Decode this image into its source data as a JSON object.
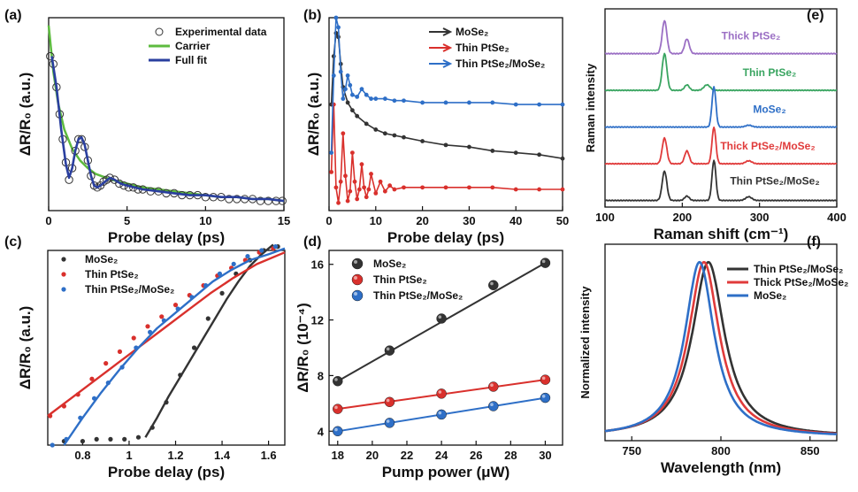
{
  "chart_data": [
    {
      "id": "a",
      "type": "scatter",
      "panel_label": "(a)",
      "xlabel": "Probe delay (ps)",
      "ylabel": "ΔR/R₀ (a.u.)",
      "xlim": [
        0,
        15
      ],
      "ylim": [
        0,
        1
      ],
      "xticks": [
        0,
        5,
        10,
        15
      ],
      "yticks": [],
      "legend_position": "top-right",
      "series": [
        {
          "name": "Experimental data",
          "kind": "scatter-open",
          "color": "#333333",
          "x": [
            0.1,
            0.3,
            0.5,
            0.7,
            0.9,
            1.1,
            1.3,
            1.5,
            1.7,
            1.9,
            2.1,
            2.3,
            2.5,
            2.7,
            2.9,
            3.1,
            3.3,
            3.5,
            3.7,
            3.9,
            4.2,
            4.5,
            4.8,
            5.1,
            5.4,
            5.7,
            6.0,
            6.5,
            7.0,
            7.5,
            8.0,
            8.5,
            9.0,
            9.5,
            10.0,
            10.5,
            11.0,
            11.5,
            12.0,
            12.5,
            13.0,
            13.5,
            14.0,
            14.5,
            14.9
          ],
          "y": [
            0.8,
            0.76,
            0.64,
            0.5,
            0.37,
            0.25,
            0.16,
            0.22,
            0.31,
            0.37,
            0.37,
            0.33,
            0.26,
            0.18,
            0.13,
            0.12,
            0.13,
            0.15,
            0.16,
            0.17,
            0.16,
            0.14,
            0.13,
            0.12,
            0.12,
            0.11,
            0.11,
            0.1,
            0.1,
            0.09,
            0.09,
            0.08,
            0.08,
            0.08,
            0.07,
            0.07,
            0.07,
            0.06,
            0.06,
            0.06,
            0.06,
            0.05,
            0.05,
            0.05,
            0.05
          ]
        },
        {
          "name": "Carrier",
          "kind": "line",
          "color": "#5dbb3f",
          "x": [
            0,
            0.3,
            0.6,
            1.0,
            1.5,
            2.0,
            2.5,
            3.0,
            4.0,
            5.0,
            6.0,
            7.0,
            8.0,
            9.0,
            10.0,
            11.0,
            12.0,
            13.0,
            14.0,
            15.0
          ],
          "y": [
            0.96,
            0.72,
            0.56,
            0.42,
            0.32,
            0.26,
            0.22,
            0.19,
            0.16,
            0.14,
            0.12,
            0.11,
            0.1,
            0.09,
            0.08,
            0.07,
            0.07,
            0.06,
            0.06,
            0.05
          ]
        },
        {
          "name": "Full fit",
          "kind": "line",
          "color": "#2a3f9f",
          "x": [
            0.2,
            0.5,
            0.8,
            1.1,
            1.3,
            1.5,
            1.7,
            1.9,
            2.1,
            2.3,
            2.5,
            2.7,
            2.9,
            3.1,
            3.3,
            3.6,
            3.9,
            4.2,
            4.6,
            5.0,
            6.0,
            7.0,
            8.0,
            9.0,
            10.0,
            11.0,
            12.0,
            13.0,
            14.0,
            15.0
          ],
          "y": [
            0.8,
            0.64,
            0.42,
            0.24,
            0.17,
            0.22,
            0.31,
            0.37,
            0.38,
            0.34,
            0.26,
            0.18,
            0.13,
            0.12,
            0.13,
            0.15,
            0.17,
            0.16,
            0.14,
            0.13,
            0.11,
            0.1,
            0.09,
            0.08,
            0.08,
            0.07,
            0.07,
            0.06,
            0.06,
            0.05
          ]
        }
      ]
    },
    {
      "id": "b",
      "type": "line",
      "panel_label": "(b)",
      "xlabel": "Probe delay (ps)",
      "ylabel": "ΔR/R₀ (a.u.)",
      "xlim": [
        0,
        50
      ],
      "ylim": [
        0,
        1
      ],
      "xticks": [
        0,
        10,
        20,
        30,
        40,
        50
      ],
      "yticks": [],
      "legend_position": "top-right",
      "series": [
        {
          "name": "MoSe₂",
          "color": "#333333",
          "x": [
            0.5,
            1.0,
            1.5,
            2.0,
            2.5,
            3.0,
            4.0,
            5.0,
            6.0,
            8.0,
            10.0,
            12.0,
            14.0,
            16.0,
            20.0,
            25.0,
            30.0,
            35.0,
            40.0,
            45.0,
            50.0
          ],
          "y": [
            0.55,
            0.8,
            0.92,
            0.9,
            0.76,
            0.64,
            0.56,
            0.52,
            0.49,
            0.45,
            0.42,
            0.4,
            0.39,
            0.38,
            0.36,
            0.34,
            0.33,
            0.31,
            0.3,
            0.29,
            0.27
          ]
        },
        {
          "name": "Thin PtSe₂",
          "color": "#d9302c",
          "x": [
            0.5,
            1.0,
            1.5,
            2.0,
            2.5,
            3.0,
            3.5,
            4.0,
            4.5,
            5.0,
            5.5,
            6.0,
            6.5,
            7.0,
            7.5,
            8.0,
            8.5,
            9.0,
            10.0,
            11.0,
            12.0,
            13.0,
            14.0,
            16.0,
            20.0,
            25.0,
            30.0,
            35.0,
            40.0,
            45.0,
            50.0
          ],
          "y": [
            0.2,
            0.55,
            0.12,
            0.04,
            0.15,
            0.4,
            0.18,
            0.05,
            0.1,
            0.3,
            0.15,
            0.06,
            0.11,
            0.24,
            0.12,
            0.07,
            0.11,
            0.19,
            0.09,
            0.15,
            0.1,
            0.13,
            0.11,
            0.12,
            0.12,
            0.12,
            0.12,
            0.12,
            0.11,
            0.11,
            0.11
          ]
        },
        {
          "name": "Thin PtSe₂/MoSe₂",
          "color": "#2e6fc7",
          "x": [
            0.5,
            1.0,
            1.5,
            2.0,
            2.5,
            3.0,
            3.5,
            4.0,
            4.5,
            5.0,
            6.0,
            7.0,
            8.0,
            9.0,
            10.0,
            12.0,
            14.0,
            16.0,
            20.0,
            25.0,
            30.0,
            35.0,
            40.0,
            45.0,
            50.0
          ],
          "y": [
            0.3,
            0.7,
            1.0,
            0.95,
            0.72,
            0.58,
            0.63,
            0.7,
            0.65,
            0.6,
            0.59,
            0.63,
            0.6,
            0.58,
            0.58,
            0.58,
            0.57,
            0.57,
            0.56,
            0.56,
            0.56,
            0.56,
            0.55,
            0.55,
            0.55
          ]
        }
      ]
    },
    {
      "id": "c",
      "type": "scatter",
      "panel_label": "(c)",
      "xlabel": "Probe delay (ps)",
      "ylabel": "ΔR/R₀ (a.u.)",
      "xlim": [
        0.65,
        1.67
      ],
      "ylim": [
        0,
        1
      ],
      "xticks": [
        0.8,
        1.0,
        1.2,
        1.4,
        1.6
      ],
      "yticks": [],
      "legend_position": "top-left",
      "series": [
        {
          "name": "MoSe₂",
          "color": "#333333",
          "points_x": [
            0.72,
            0.8,
            0.86,
            0.92,
            0.98,
            1.04,
            1.1,
            1.16,
            1.22,
            1.28,
            1.34,
            1.4,
            1.46,
            1.52,
            1.58,
            1.64
          ],
          "points_y": [
            0.02,
            0.02,
            0.03,
            0.03,
            0.03,
            0.04,
            0.09,
            0.22,
            0.36,
            0.5,
            0.65,
            0.78,
            0.88,
            0.95,
            1.0,
            1.02
          ],
          "fit_x": [
            1.07,
            1.12,
            1.17,
            1.22,
            1.27,
            1.32,
            1.37,
            1.42,
            1.47,
            1.52,
            1.57,
            1.62
          ],
          "fit_y": [
            0.04,
            0.14,
            0.25,
            0.35,
            0.45,
            0.55,
            0.65,
            0.75,
            0.84,
            0.92,
            0.98,
            1.03
          ]
        },
        {
          "name": "Thin PtSe₂",
          "color": "#d9302c",
          "points_x": [
            0.66,
            0.72,
            0.78,
            0.84,
            0.9,
            0.96,
            1.02,
            1.08,
            1.14,
            1.2,
            1.26,
            1.32,
            1.38,
            1.44,
            1.5,
            1.56,
            1.62
          ],
          "points_y": [
            0.15,
            0.2,
            0.26,
            0.34,
            0.42,
            0.48,
            0.55,
            0.61,
            0.66,
            0.72,
            0.77,
            0.82,
            0.87,
            0.91,
            0.95,
            0.99,
            1.01
          ],
          "fit_x": [
            0.65,
            0.75,
            0.85,
            0.95,
            1.05,
            1.15,
            1.25,
            1.35,
            1.45,
            1.55,
            1.67
          ],
          "fit_y": [
            0.15,
            0.24,
            0.33,
            0.42,
            0.51,
            0.6,
            0.69,
            0.78,
            0.86,
            0.93,
            0.99
          ]
        },
        {
          "name": "Thin PtSe₂/MoSe₂",
          "color": "#2e6fc7",
          "points_x": [
            0.67,
            0.73,
            0.79,
            0.85,
            0.91,
            0.97,
            1.03,
            1.09,
            1.15,
            1.21,
            1.27,
            1.33,
            1.39,
            1.45,
            1.51,
            1.57,
            1.63
          ],
          "points_y": [
            0.0,
            0.03,
            0.14,
            0.24,
            0.32,
            0.4,
            0.5,
            0.58,
            0.64,
            0.7,
            0.76,
            0.82,
            0.88,
            0.93,
            0.97,
            1.0,
            1.02
          ],
          "fit_x": [
            0.72,
            0.8,
            0.88,
            0.96,
            1.04,
            1.12,
            1.2,
            1.28,
            1.36,
            1.44,
            1.52,
            1.6,
            1.67
          ],
          "fit_y": [
            0.0,
            0.14,
            0.27,
            0.39,
            0.5,
            0.6,
            0.68,
            0.76,
            0.84,
            0.9,
            0.95,
            0.98,
            1.01
          ]
        }
      ]
    },
    {
      "id": "d",
      "type": "scatter",
      "panel_label": "(d)",
      "xlabel": "Pump power (μW)",
      "ylabel": "ΔR/R₀ (10⁻⁴)",
      "xlim": [
        17.5,
        31
      ],
      "ylim": [
        3,
        17
      ],
      "xticks": [
        18,
        20,
        22,
        24,
        26,
        28,
        30
      ],
      "yticks": [
        4,
        8,
        12,
        16
      ],
      "legend_position": "top-left",
      "series": [
        {
          "name": "MoSe₂",
          "color": "#333333",
          "x": [
            18,
            21,
            24,
            27,
            30
          ],
          "y": [
            7.6,
            9.8,
            12.1,
            14.5,
            16.1
          ]
        },
        {
          "name": "Thin PtSe₂",
          "color": "#d9302c",
          "x": [
            18,
            21,
            24,
            27,
            30
          ],
          "y": [
            5.6,
            6.1,
            6.7,
            7.2,
            7.7
          ]
        },
        {
          "name": "Thin PtSe₂/MoSe₂",
          "color": "#2e6fc7",
          "x": [
            18,
            21,
            24,
            27,
            30
          ],
          "y": [
            4.0,
            4.6,
            5.2,
            5.8,
            6.4
          ]
        }
      ]
    },
    {
      "id": "e",
      "type": "line",
      "panel_label": "(e)",
      "xlabel": "Raman shift (cm⁻¹)",
      "ylabel": "Raman intensity",
      "xlim": [
        100,
        400
      ],
      "xticks": [
        100,
        200,
        300,
        400
      ],
      "yticks": [],
      "series": [
        {
          "name": "Thick PtSe₂",
          "color": "#9b6fc4",
          "offset": 4,
          "peaks": [
            [
              177,
              0.9,
              3
            ],
            [
              206,
              0.4,
              3
            ]
          ]
        },
        {
          "name": "Thin PtSe₂",
          "color": "#3aa561",
          "offset": 3,
          "peaks": [
            [
              177,
              1.0,
              3
            ],
            [
              206,
              0.15,
              3
            ],
            [
              232,
              0.15,
              4
            ]
          ]
        },
        {
          "name": "MoSe₂",
          "color": "#2e6fc7",
          "offset": 2,
          "peaks": [
            [
              241,
              1.1,
              2.5
            ],
            [
              286,
              0.05,
              4
            ]
          ]
        },
        {
          "name": "Thick PtSe₂/MoSe₂",
          "color": "#e03b3b",
          "offset": 1,
          "peaks": [
            [
              177,
              0.7,
              3
            ],
            [
              206,
              0.35,
              3
            ],
            [
              241,
              1.0,
              2.5
            ],
            [
              286,
              0.08,
              4
            ]
          ]
        },
        {
          "name": "Thin PtSe₂/MoSe₂",
          "color": "#333333",
          "offset": 0,
          "peaks": [
            [
              177,
              0.8,
              3
            ],
            [
              206,
              0.12,
              3
            ],
            [
              241,
              1.1,
              2.5
            ],
            [
              286,
              0.1,
              4
            ]
          ]
        }
      ]
    },
    {
      "id": "f",
      "type": "line",
      "panel_label": "(f)",
      "xlabel": "Wavelength (nm)",
      "ylabel": "Normalized intensity",
      "xlim": [
        735,
        865
      ],
      "ylim": [
        0,
        1.1
      ],
      "xticks": [
        750,
        800,
        850
      ],
      "yticks": [],
      "legend_position": "top-right",
      "series": [
        {
          "name": "Thin PtSe₂/MoSe₂",
          "color": "#333333",
          "center": 793,
          "width": 11
        },
        {
          "name": "Thick PtSe₂/MoSe₂",
          "color": "#e03b3b",
          "center": 790.5,
          "width": 10.5
        },
        {
          "name": "MoSe₂",
          "color": "#2e6fc7",
          "center": 788,
          "width": 10
        }
      ]
    }
  ]
}
